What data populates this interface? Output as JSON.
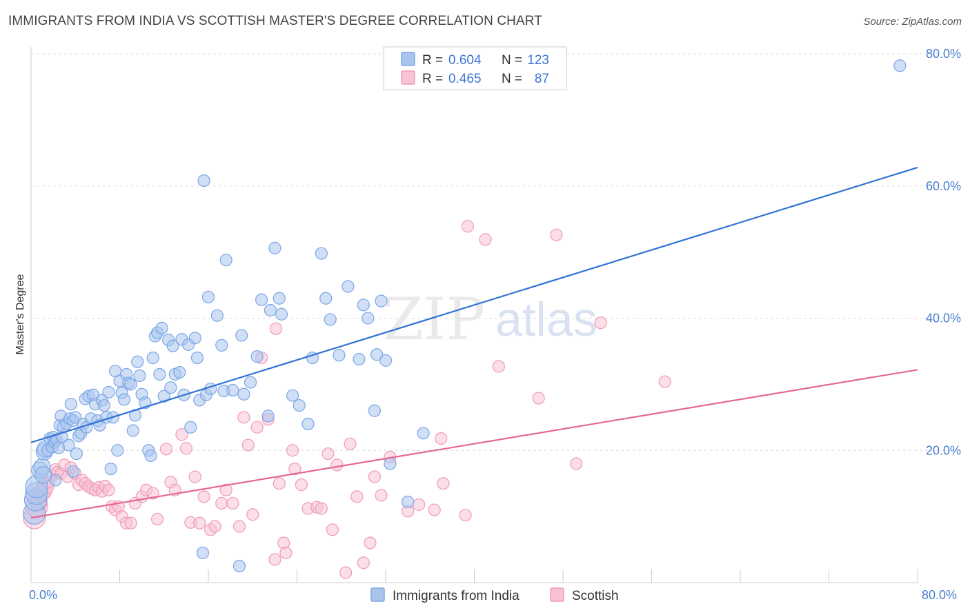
{
  "header": {
    "title": "IMMIGRANTS FROM INDIA VS SCOTTISH MASTER'S DEGREE CORRELATION CHART",
    "source": "Source: ZipAtlas.com"
  },
  "watermark": {
    "zip": "ZIP",
    "atlas": "atlas"
  },
  "colors": {
    "blue": "#7aa6e6",
    "blue_fill": "#a9c5ee",
    "blue_line": "#2f72d4",
    "pink": "#f09ab5",
    "pink_fill": "#f7c3d3",
    "pink_line": "#e5678f",
    "axis_text": "#4a7fd0",
    "grid": "#dddddd"
  },
  "legend": {
    "rows": [
      {
        "r_label": "R = ",
        "r_value": "0.604",
        "n_label": "N = ",
        "n_value": "123"
      },
      {
        "r_label": "R = ",
        "r_value": "0.465",
        "n_label": "N = ",
        "n_value": "87"
      }
    ]
  },
  "bottom_legend": {
    "items": [
      "Immigrants from India",
      "Scottish"
    ]
  },
  "chart_data": {
    "type": "scatter",
    "title": "IMMIGRANTS FROM INDIA VS SCOTTISH MASTER'S DEGREE CORRELATION CHART",
    "xlabel": "",
    "ylabel": "Master's Degree",
    "xlim": [
      0,
      80
    ],
    "ylim": [
      0,
      80
    ],
    "x_tick_labels": [
      "0.0%",
      "80.0%"
    ],
    "y_tick_labels": [
      "20.0%",
      "40.0%",
      "60.0%",
      "80.0%"
    ],
    "y_ticks": [
      20,
      40,
      60,
      80
    ],
    "grid": true,
    "legend_position": "top-center",
    "series": [
      {
        "name": "Immigrants from India",
        "stats": {
          "R": 0.604,
          "N": 123
        },
        "trend": {
          "x": [
            0,
            80
          ],
          "y": [
            21.2,
            62.8
          ]
        },
        "points": [
          [
            0.3,
            10.5
          ],
          [
            0.4,
            12.5
          ],
          [
            0.5,
            13.5
          ],
          [
            0.5,
            14.5
          ],
          [
            0.8,
            17
          ],
          [
            1,
            17.5
          ],
          [
            1.2,
            19.8
          ],
          [
            1.3,
            20.2
          ],
          [
            1.5,
            20
          ],
          [
            1.7,
            21.8
          ],
          [
            1.9,
            20.5
          ],
          [
            2,
            22
          ],
          [
            2.1,
            21.2
          ],
          [
            2.3,
            21.6
          ],
          [
            2.5,
            20.4
          ],
          [
            2.6,
            23.8
          ],
          [
            2.7,
            25.2
          ],
          [
            2.8,
            22
          ],
          [
            2.9,
            23.5
          ],
          [
            3.2,
            24
          ],
          [
            3.4,
            20.8
          ],
          [
            3.5,
            24.8
          ],
          [
            3.6,
            27
          ],
          [
            3.8,
            24.5
          ],
          [
            4,
            25
          ],
          [
            4.1,
            19.5
          ],
          [
            4.3,
            22.2
          ],
          [
            4.5,
            22.6
          ],
          [
            4.7,
            24
          ],
          [
            4.9,
            27.8
          ],
          [
            5,
            23.5
          ],
          [
            5.2,
            28.2
          ],
          [
            5.4,
            24.8
          ],
          [
            5.6,
            28.4
          ],
          [
            5.8,
            27
          ],
          [
            6,
            24.5
          ],
          [
            6.2,
            23.8
          ],
          [
            6.4,
            27.6
          ],
          [
            6.6,
            26.8
          ],
          [
            6.8,
            25
          ],
          [
            7,
            28.8
          ],
          [
            7.2,
            17.2
          ],
          [
            7.4,
            25
          ],
          [
            7.6,
            32
          ],
          [
            7.8,
            20
          ],
          [
            8,
            30.5
          ],
          [
            8.2,
            28.7
          ],
          [
            8.4,
            27.7
          ],
          [
            8.6,
            31.5
          ],
          [
            8.8,
            30.2
          ],
          [
            9,
            30
          ],
          [
            9.2,
            23
          ],
          [
            9.4,
            25.3
          ],
          [
            9.6,
            33.4
          ],
          [
            9.8,
            31.3
          ],
          [
            10,
            28.5
          ],
          [
            10.3,
            27.2
          ],
          [
            10.6,
            20
          ],
          [
            10.8,
            19.2
          ],
          [
            11,
            34
          ],
          [
            11.2,
            37.3
          ],
          [
            11.4,
            37.8
          ],
          [
            11.6,
            31.5
          ],
          [
            11.8,
            38.5
          ],
          [
            12,
            28.2
          ],
          [
            12.4,
            36.7
          ],
          [
            12.6,
            29.5
          ],
          [
            12.8,
            35.8
          ],
          [
            13,
            31.5
          ],
          [
            13.4,
            31.8
          ],
          [
            13.6,
            36.8
          ],
          [
            13.8,
            28.4
          ],
          [
            14.2,
            36
          ],
          [
            14.4,
            23.5
          ],
          [
            14.8,
            37
          ],
          [
            15,
            34
          ],
          [
            15.2,
            27.6
          ],
          [
            15.6,
            60.8
          ],
          [
            15.8,
            28.4
          ],
          [
            16,
            43.2
          ],
          [
            16.2,
            29.3
          ],
          [
            16.8,
            40.4
          ],
          [
            17.2,
            35.9
          ],
          [
            17.4,
            29
          ],
          [
            17.6,
            48.8
          ],
          [
            18.2,
            29.1
          ],
          [
            18.8,
            2.5
          ],
          [
            19,
            37.4
          ],
          [
            19.2,
            28.5
          ],
          [
            19.8,
            30.3
          ],
          [
            20.4,
            34.2
          ],
          [
            20.8,
            42.8
          ],
          [
            21.4,
            25.2
          ],
          [
            21.6,
            41.2
          ],
          [
            22,
            50.6
          ],
          [
            22.4,
            43
          ],
          [
            22.6,
            40.6
          ],
          [
            23.6,
            28.3
          ],
          [
            24.2,
            26.8
          ],
          [
            25,
            24
          ],
          [
            25.4,
            34
          ],
          [
            26.2,
            49.8
          ],
          [
            26.6,
            43
          ],
          [
            27,
            39.8
          ],
          [
            27.8,
            34.4
          ],
          [
            28.6,
            44.8
          ],
          [
            29.6,
            33.8
          ],
          [
            30,
            42
          ],
          [
            30.4,
            40
          ],
          [
            31,
            26
          ],
          [
            31.2,
            34.5
          ],
          [
            31.6,
            42.6
          ],
          [
            32,
            33.6
          ],
          [
            32.4,
            18
          ],
          [
            34,
            12.2
          ],
          [
            35.4,
            22.6
          ],
          [
            78.4,
            78.2
          ],
          [
            15.5,
            4.5
          ],
          [
            3.8,
            16.8
          ],
          [
            2.2,
            15.5
          ],
          [
            1.1,
            16.3
          ]
        ]
      },
      {
        "name": "Scottish",
        "stats": {
          "R": 0.465,
          "N": 87
        },
        "trend": {
          "x": [
            0,
            80
          ],
          "y": [
            9.8,
            32.2
          ]
        },
        "points": [
          [
            0.3,
            9.8
          ],
          [
            0.5,
            11.5
          ],
          [
            0.7,
            12.2
          ],
          [
            0.9,
            13.5
          ],
          [
            1.1,
            13.8
          ],
          [
            1.3,
            14.6
          ],
          [
            1.6,
            15.2
          ],
          [
            1.9,
            16.2
          ],
          [
            2.2,
            17.1
          ],
          [
            2.4,
            16.7
          ],
          [
            2.7,
            16.5
          ],
          [
            3,
            17.8
          ],
          [
            3.3,
            16
          ],
          [
            3.6,
            17.4
          ],
          [
            4,
            16.5
          ],
          [
            4.3,
            14.8
          ],
          [
            4.6,
            15.5
          ],
          [
            4.9,
            15
          ],
          [
            5.2,
            14.5
          ],
          [
            5.5,
            14.2
          ],
          [
            5.8,
            14
          ],
          [
            6.1,
            14.4
          ],
          [
            6.4,
            13.8
          ],
          [
            6.7,
            14.6
          ],
          [
            7,
            14
          ],
          [
            7.3,
            11.5
          ],
          [
            7.6,
            11
          ],
          [
            7.9,
            11.5
          ],
          [
            8.2,
            10
          ],
          [
            8.6,
            9
          ],
          [
            9,
            9
          ],
          [
            9.4,
            12
          ],
          [
            10,
            13
          ],
          [
            10.4,
            14
          ],
          [
            11,
            13.5
          ],
          [
            11.4,
            9.6
          ],
          [
            12.2,
            20.2
          ],
          [
            12.6,
            15.2
          ],
          [
            13,
            14
          ],
          [
            13.6,
            22.4
          ],
          [
            14,
            20.3
          ],
          [
            14.4,
            9.1
          ],
          [
            14.8,
            16
          ],
          [
            15.2,
            9
          ],
          [
            15.6,
            13
          ],
          [
            16.2,
            8
          ],
          [
            16.6,
            8.5
          ],
          [
            17.2,
            12
          ],
          [
            17.6,
            14
          ],
          [
            18.2,
            12
          ],
          [
            18.8,
            8.5
          ],
          [
            19.2,
            25
          ],
          [
            19.6,
            20.8
          ],
          [
            20,
            10.3
          ],
          [
            20.4,
            23.5
          ],
          [
            20.8,
            34
          ],
          [
            21.4,
            24.7
          ],
          [
            22,
            3.5
          ],
          [
            22.4,
            15
          ],
          [
            22.8,
            6
          ],
          [
            23,
            4.5
          ],
          [
            23.6,
            20
          ],
          [
            23.8,
            17.2
          ],
          [
            24.4,
            14.8
          ],
          [
            25,
            11.2
          ],
          [
            25.8,
            11.4
          ],
          [
            26.2,
            11.2
          ],
          [
            26.8,
            19.5
          ],
          [
            27.2,
            8
          ],
          [
            27.6,
            17.8
          ],
          [
            28.4,
            1.5
          ],
          [
            28.8,
            21
          ],
          [
            29.4,
            13
          ],
          [
            30,
            3
          ],
          [
            30.6,
            6
          ],
          [
            31,
            16
          ],
          [
            31.6,
            13.2
          ],
          [
            32.4,
            19
          ],
          [
            34,
            10.8
          ],
          [
            35,
            11.8
          ],
          [
            36.4,
            11
          ],
          [
            37,
            21.8
          ],
          [
            37.2,
            15
          ],
          [
            39.4,
            53.9
          ],
          [
            41,
            51.9
          ],
          [
            42.2,
            32.7
          ],
          [
            45.8,
            27.9
          ],
          [
            47.4,
            52.6
          ],
          [
            49.2,
            18
          ],
          [
            51.4,
            39.3
          ],
          [
            57.2,
            30.4
          ],
          [
            39.2,
            10.2
          ],
          [
            22.1,
            38.4
          ]
        ]
      }
    ]
  }
}
